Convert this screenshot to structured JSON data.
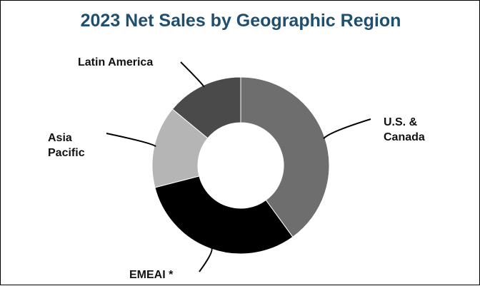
{
  "chart_data": {
    "type": "pie",
    "title": "2023 Net Sales by Geographic Region",
    "donut": true,
    "categories": [
      "U.S. & Canada",
      "EMEAI *",
      "Asia Pacific",
      "Latin America"
    ],
    "values": [
      40,
      31,
      15,
      14
    ],
    "colors": [
      "#6e6e6e",
      "#000000",
      "#b5b5b5",
      "#4a4a4a"
    ],
    "legend": "none (direct labels with leader lines)"
  }
}
